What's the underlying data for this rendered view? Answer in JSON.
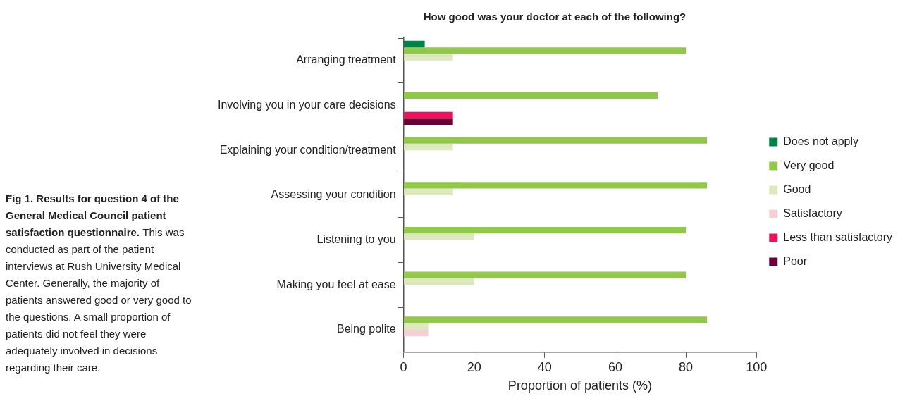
{
  "chart_data": {
    "type": "bar",
    "orientation": "horizontal",
    "title": "How good was your doctor at each of the following?",
    "xlabel": "Proportion of patients (%)",
    "categories": [
      "Arranging treatment",
      "Involving you in your care decisions",
      "Explaining your condition/treatment",
      "Assessing your condition",
      "Listening to you",
      "Making you feel at ease",
      "Being polite"
    ],
    "series": [
      {
        "name": "Does not apply",
        "color": "#008147",
        "values": [
          6,
          null,
          null,
          null,
          null,
          null,
          null
        ]
      },
      {
        "name": "Very good",
        "color": "#92c84a",
        "values": [
          80,
          72,
          86,
          86,
          80,
          80,
          86
        ]
      },
      {
        "name": "Good",
        "color": "#dbe9bc",
        "values": [
          14,
          null,
          14,
          14,
          20,
          20,
          7
        ]
      },
      {
        "name": "Satisfactory",
        "color": "#f4d0d6",
        "values": [
          null,
          null,
          null,
          null,
          null,
          null,
          7
        ]
      },
      {
        "name": "Less than satisfactory",
        "color": "#ec135c",
        "values": [
          null,
          14,
          null,
          null,
          null,
          null,
          null
        ]
      },
      {
        "name": "Poor",
        "color": "#6a0037",
        "values": [
          null,
          14,
          null,
          null,
          null,
          null,
          null
        ]
      }
    ],
    "xlim": [
      0,
      100
    ],
    "xticks": [
      0,
      20,
      40,
      60,
      80,
      100
    ],
    "grid": false,
    "legend": "right",
    "annotations": [
      "Fig 1. Results for question 4 of the General Medical Council patient satisfaction questionnaire.",
      "This was conducted as part of the patient interviews at Rush University Medical Center. Generally, the majority of patients answered good or very good to the questions. A small proportion of patients did not feel they were adequately involved in decisions regarding their care."
    ]
  }
}
